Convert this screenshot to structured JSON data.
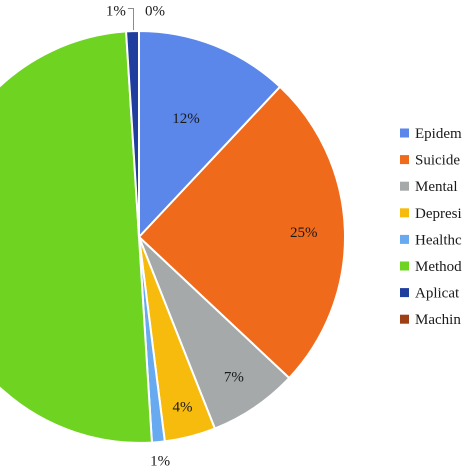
{
  "chart_data": {
    "type": "pie",
    "title": "",
    "categories": [
      "Epidem",
      "Suicide",
      "Mental",
      "Depresi",
      "Healthc",
      "Method",
      "Aplicat",
      "Machin"
    ],
    "values": [
      12,
      25,
      7,
      4,
      1,
      50,
      1,
      0
    ],
    "value_labels": [
      "12%",
      "25%",
      "7%",
      "4%",
      "1%",
      "",
      "1%",
      "0%"
    ],
    "colors": [
      "#5b86ea",
      "#f06a1c",
      "#a5a9a9",
      "#f7bb0d",
      "#67aaf0",
      "#6ed321",
      "#1f3e9e",
      "#9e4016"
    ],
    "legend": {
      "position": "right",
      "labels": [
        "Epidem",
        "Suicide",
        "Mental",
        "Depresi",
        "Healthc",
        "Method",
        "Aplicat",
        "Machin"
      ]
    }
  }
}
